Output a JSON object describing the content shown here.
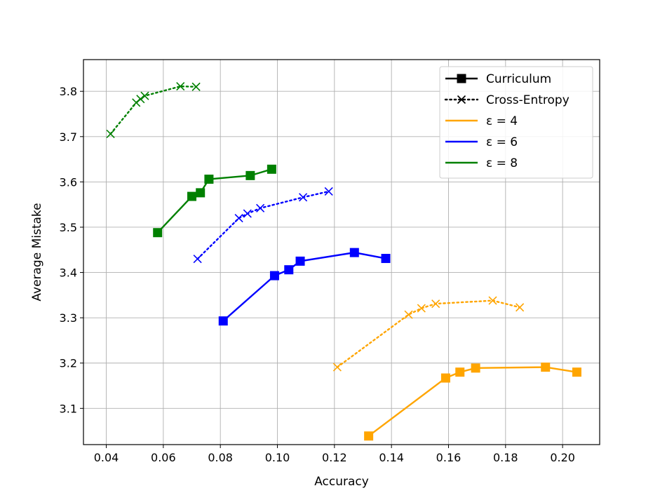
{
  "chart_data": {
    "type": "line",
    "title": "",
    "xlabel": "Accuracy",
    "ylabel": "Average Mistake",
    "xlim": [
      0.032,
      0.213
    ],
    "ylim": [
      3.02,
      3.87
    ],
    "xticks": [
      0.04,
      0.06,
      0.08,
      0.1,
      0.12,
      0.14,
      0.16,
      0.18,
      0.2
    ],
    "xtick_labels": [
      "0.04",
      "0.06",
      "0.08",
      "0.10",
      "0.12",
      "0.14",
      "0.16",
      "0.18",
      "0.20"
    ],
    "yticks": [
      3.1,
      3.2,
      3.3,
      3.4,
      3.5,
      3.6,
      3.7,
      3.8
    ],
    "ytick_labels": [
      "3.1",
      "3.2",
      "3.3",
      "3.4",
      "3.5",
      "3.6",
      "3.7",
      "3.8"
    ],
    "grid": true,
    "legend_position": "top-right",
    "legend": [
      {
        "label": "Curriculum",
        "style": "solid-square",
        "color": "#000000"
      },
      {
        "label": "Cross-Entropy",
        "style": "dotted-x",
        "color": "#000000"
      },
      {
        "label": "ε = 4",
        "style": "line",
        "color": "#FFA500"
      },
      {
        "label": "ε = 6",
        "style": "line",
        "color": "#0000FF"
      },
      {
        "label": "ε = 8",
        "style": "line",
        "color": "#008000"
      }
    ],
    "series": [
      {
        "name": "Curriculum ε = 8",
        "color": "#008000",
        "style": "solid-square",
        "x": [
          0.058,
          0.07,
          0.073,
          0.076,
          0.0905,
          0.098
        ],
        "y": [
          3.488,
          3.568,
          3.576,
          3.606,
          3.614,
          3.628
        ]
      },
      {
        "name": "Cross-Entropy ε = 8",
        "color": "#008000",
        "style": "dotted-x",
        "x": [
          0.0415,
          0.0505,
          0.052,
          0.0535,
          0.066,
          0.0715
        ],
        "y": [
          3.706,
          3.775,
          3.783,
          3.79,
          3.811,
          3.81
        ]
      },
      {
        "name": "Curriculum ε = 6",
        "color": "#0000FF",
        "style": "solid-square",
        "x": [
          0.081,
          0.099,
          0.104,
          0.108,
          0.127,
          0.138
        ],
        "y": [
          3.293,
          3.393,
          3.406,
          3.425,
          3.444,
          3.431
        ]
      },
      {
        "name": "Cross-Entropy ε = 6",
        "color": "#0000FF",
        "style": "dotted-x",
        "x": [
          0.072,
          0.0865,
          0.0895,
          0.094,
          0.109,
          0.118
        ],
        "y": [
          3.43,
          3.52,
          3.53,
          3.542,
          3.566,
          3.579
        ]
      },
      {
        "name": "Curriculum ε = 4",
        "color": "#FFA500",
        "style": "solid-square",
        "x": [
          0.132,
          0.159,
          0.164,
          0.1695,
          0.194,
          0.205
        ],
        "y": [
          3.039,
          3.167,
          3.18,
          3.189,
          3.191,
          3.18
        ]
      },
      {
        "name": "Cross-Entropy ε = 4",
        "color": "#FFA500",
        "style": "dotted-x",
        "x": [
          0.121,
          0.146,
          0.1505,
          0.1555,
          0.1755,
          0.185
        ],
        "y": [
          3.191,
          3.307,
          3.321,
          3.331,
          3.338,
          3.323
        ]
      }
    ]
  }
}
